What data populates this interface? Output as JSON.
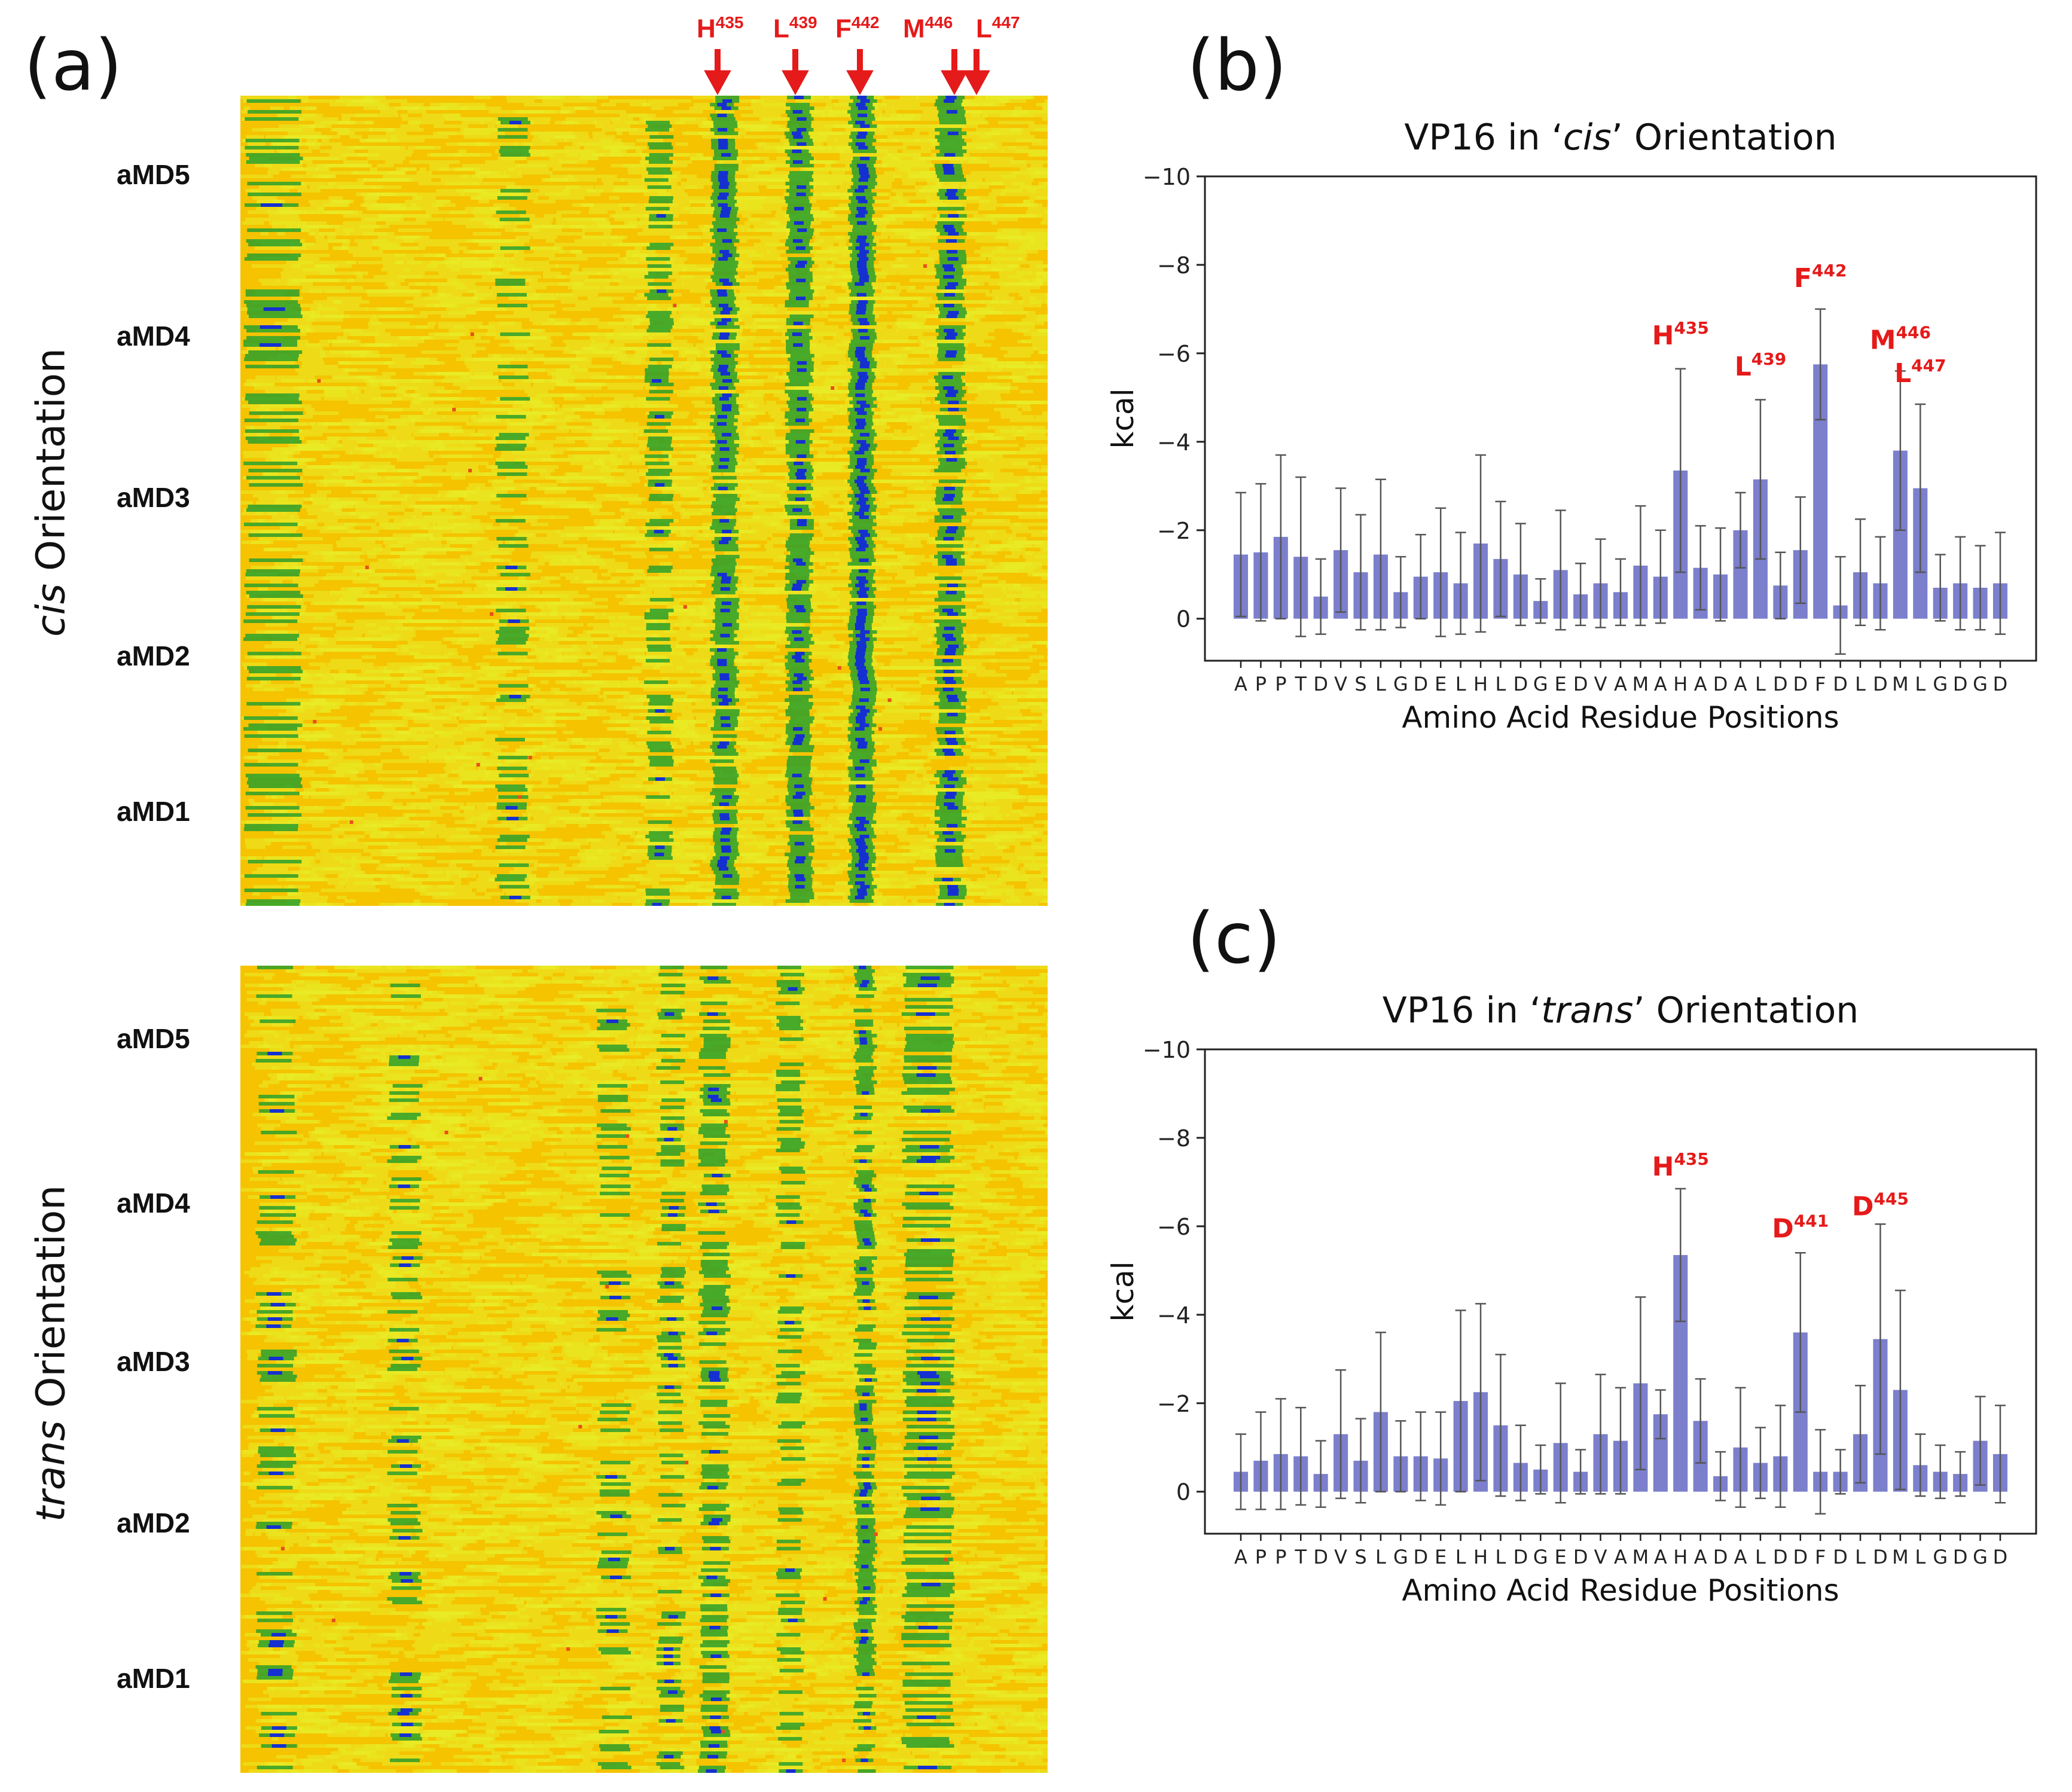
{
  "panel_a": {
    "letter": "(a)",
    "top_title_italic": "cis",
    "top_title_rest": " Orientation",
    "bottom_title_italic": "trans",
    "bottom_title_rest": " Orientation",
    "runs_top": [
      "aMD5",
      "aMD4",
      "aMD3",
      "aMD2",
      "aMD1"
    ],
    "runs_bottom": [
      "aMD5",
      "aMD4",
      "aMD3",
      "aMD2",
      "aMD1"
    ],
    "arrow_labels": [
      {
        "base": "H",
        "sup": "435"
      },
      {
        "base": "L",
        "sup": "439"
      },
      {
        "base": "F",
        "sup": "442"
      },
      {
        "base": "M",
        "sup": "446"
      },
      {
        "base": "L",
        "sup": "447"
      }
    ],
    "heatmap_colors": {
      "low": "#f5c300",
      "mid": "#e8ec28",
      "green": "#2ca02c",
      "blue": "#1530d0",
      "red": "#e8501a"
    },
    "annotation_color": "#e51a1a"
  },
  "chart_data": [
    {
      "type": "bar",
      "letter": "(b)",
      "title_pre": "VP16 in ‘",
      "title_italic": "cis",
      "title_post": "’ Orientation",
      "xlabel": "Amino Acid Residue Positions",
      "ylabel": "kcal",
      "ylim": [
        0,
        -10
      ],
      "y_inverted": true,
      "yticks": [
        0,
        -2,
        -4,
        -6,
        -8,
        -10
      ],
      "ytick_labels": [
        "0",
        "−2",
        "−4",
        "−6",
        "−8",
        "−10"
      ],
      "categories": [
        "A",
        "P",
        "P",
        "T",
        "D",
        "V",
        "S",
        "L",
        "G",
        "D",
        "E",
        "L",
        "H",
        "L",
        "D",
        "G",
        "E",
        "D",
        "V",
        "A",
        "M",
        "A",
        "H",
        "A",
        "D",
        "A",
        "L",
        "D",
        "D",
        "F",
        "D",
        "L",
        "D",
        "M",
        "L",
        "G",
        "D",
        "G",
        "D"
      ],
      "values": [
        -1.45,
        -1.5,
        -1.85,
        -1.4,
        -0.5,
        -1.55,
        -1.05,
        -1.45,
        -0.6,
        -0.95,
        -1.05,
        -0.8,
        -1.7,
        -1.35,
        -1.0,
        -0.4,
        -1.1,
        -0.55,
        -0.8,
        -0.6,
        -1.2,
        -0.95,
        -3.35,
        -1.15,
        -1.0,
        -2.0,
        -3.15,
        -0.75,
        -1.55,
        -5.75,
        -0.3,
        -1.05,
        -0.8,
        -3.8,
        -2.95,
        -0.7,
        -0.8,
        -0.7,
        -0.8
      ],
      "errors": [
        1.4,
        1.55,
        1.85,
        1.8,
        0.85,
        1.4,
        1.3,
        1.7,
        0.8,
        0.95,
        1.45,
        1.15,
        2.0,
        1.3,
        1.15,
        0.5,
        1.35,
        0.7,
        1.0,
        0.75,
        1.35,
        1.05,
        2.3,
        0.95,
        1.05,
        0.85,
        1.8,
        0.75,
        1.2,
        1.25,
        1.1,
        1.2,
        1.05,
        1.8,
        1.9,
        0.75,
        1.05,
        0.95,
        1.15
      ],
      "bar_color": "#7b7fcc",
      "annotations": [
        {
          "index": 22,
          "base": "H",
          "sup": "435",
          "value": -6.2
        },
        {
          "index": 26,
          "base": "L",
          "sup": "439",
          "value": -5.5
        },
        {
          "index": 29,
          "base": "F",
          "sup": "442",
          "value": -7.5
        },
        {
          "index": 33,
          "base": "M",
          "sup": "446",
          "value": -6.1
        },
        {
          "index": 34,
          "base": "L",
          "sup": "447",
          "value": -5.35
        }
      ]
    },
    {
      "type": "bar",
      "letter": "(c)",
      "title_pre": "VP16 in ‘",
      "title_italic": "trans",
      "title_post": "’ Orientation",
      "xlabel": "Amino Acid Residue Positions",
      "ylabel": "kcal",
      "ylim": [
        0,
        -10
      ],
      "y_inverted": true,
      "yticks": [
        0,
        -2,
        -4,
        -6,
        -8,
        -10
      ],
      "ytick_labels": [
        "0",
        "−2",
        "−4",
        "−6",
        "−8",
        "−10"
      ],
      "categories": [
        "A",
        "P",
        "P",
        "T",
        "D",
        "V",
        "S",
        "L",
        "G",
        "D",
        "E",
        "L",
        "H",
        "L",
        "D",
        "G",
        "E",
        "D",
        "V",
        "A",
        "M",
        "A",
        "H",
        "A",
        "D",
        "A",
        "L",
        "D",
        "D",
        "F",
        "D",
        "L",
        "D",
        "M",
        "L",
        "G",
        "D",
        "G",
        "D"
      ],
      "values": [
        -0.45,
        -0.7,
        -0.85,
        -0.8,
        -0.4,
        -1.3,
        -0.7,
        -1.8,
        -0.8,
        -0.8,
        -0.75,
        -2.05,
        -2.25,
        -1.5,
        -0.65,
        -0.5,
        -1.1,
        -0.45,
        -1.3,
        -1.15,
        -2.45,
        -1.75,
        -5.35,
        -1.6,
        -0.35,
        -1.0,
        -0.65,
        -0.8,
        -3.6,
        -0.45,
        -0.45,
        -1.3,
        -3.45,
        -2.3,
        -0.6,
        -0.45,
        -0.4,
        -1.15,
        -0.85
      ],
      "errors": [
        0.85,
        1.1,
        1.25,
        1.1,
        0.75,
        1.45,
        0.95,
        1.8,
        0.8,
        1.0,
        1.05,
        2.05,
        2.0,
        1.6,
        0.85,
        0.55,
        1.35,
        0.5,
        1.35,
        1.2,
        1.95,
        0.55,
        1.5,
        0.95,
        0.55,
        1.35,
        0.8,
        1.15,
        1.8,
        0.95,
        0.5,
        1.1,
        2.6,
        2.25,
        0.7,
        0.6,
        0.5,
        1.0,
        1.1
      ],
      "bar_color": "#7b7fcc",
      "annotations": [
        {
          "index": 22,
          "base": "H",
          "sup": "435",
          "value": -7.15
        },
        {
          "index": 28,
          "base": "D",
          "sup": "441",
          "value": -5.75
        },
        {
          "index": 32,
          "base": "D",
          "sup": "445",
          "value": -6.25
        }
      ]
    }
  ]
}
